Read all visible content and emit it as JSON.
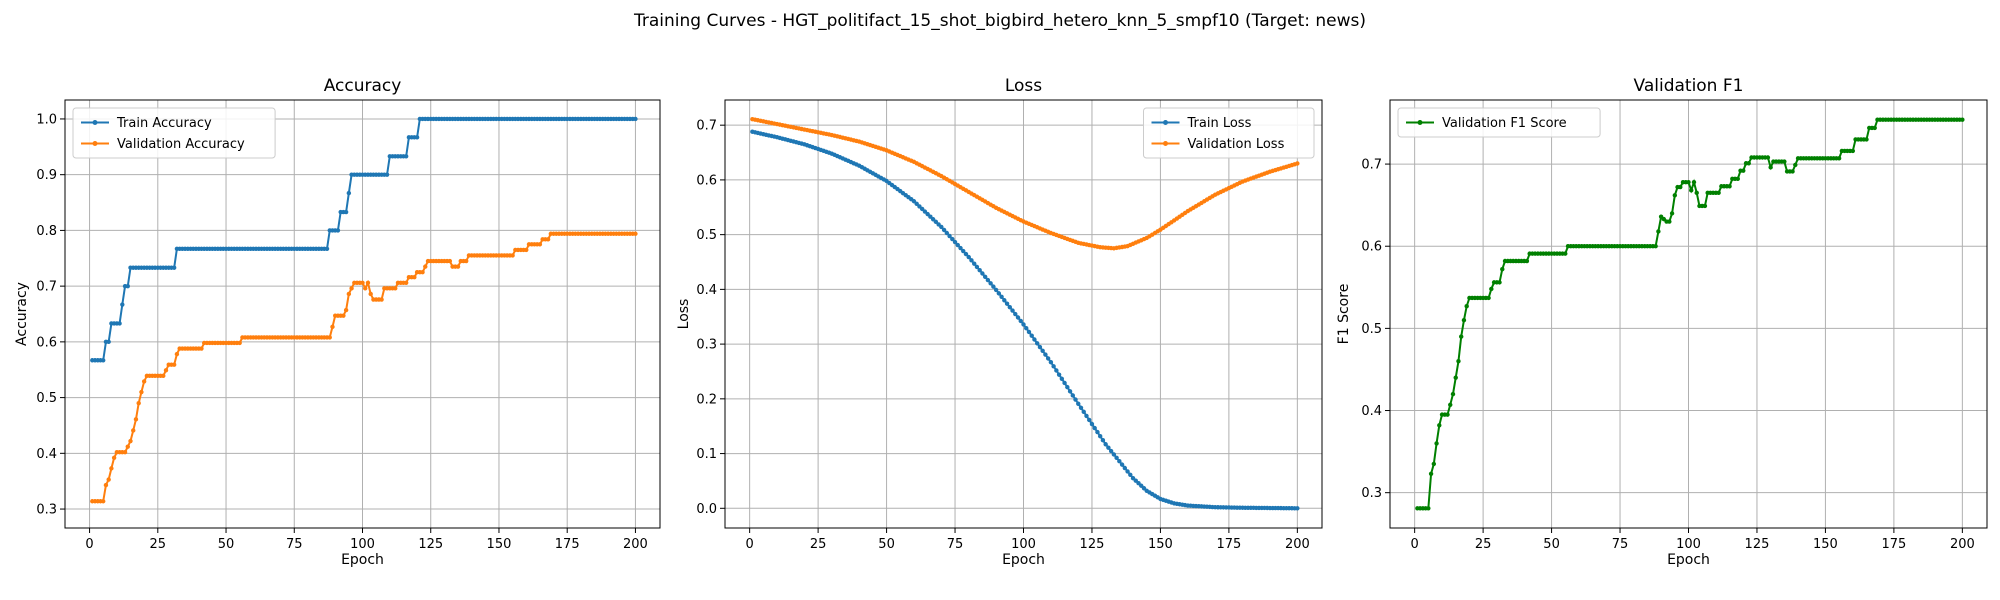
{
  "figure": {
    "suptitle": "Training Curves - HGT_politifact_15_shot_bigbird_hetero_knn_5_smpf10 (Target: news)"
  },
  "colors": {
    "blue": "#1f77b4",
    "orange": "#ff7f0e",
    "green": "#008000"
  },
  "chart_data": [
    {
      "type": "line",
      "title": "Accuracy",
      "xlabel": "Epoch",
      "ylabel": "Accuracy",
      "xlim": [
        -9,
        209
      ],
      "ylim": [
        0.266,
        1.034
      ],
      "xticks": [
        0,
        25,
        50,
        75,
        100,
        125,
        150,
        175,
        200
      ],
      "yticks": [
        0.3,
        0.4,
        0.5,
        0.6,
        0.7,
        0.8,
        0.9,
        1.0
      ],
      "ytick_labels": [
        "0.3",
        "0.4",
        "0.5",
        "0.6",
        "0.7",
        "0.8",
        "0.9",
        "1.0"
      ],
      "grid": true,
      "legend": "upper-left",
      "series": [
        {
          "name": "Train Accuracy",
          "color": "#1f77b4",
          "points": [
            [
              1,
              0.567
            ],
            [
              5,
              0.567
            ],
            [
              6,
              0.6
            ],
            [
              7,
              0.6
            ],
            [
              8,
              0.633
            ],
            [
              11,
              0.633
            ],
            [
              12,
              0.667
            ],
            [
              13,
              0.7
            ],
            [
              14,
              0.7
            ],
            [
              15,
              0.733
            ],
            [
              31,
              0.733
            ],
            [
              32,
              0.767
            ],
            [
              87,
              0.767
            ],
            [
              88,
              0.8
            ],
            [
              91,
              0.8
            ],
            [
              92,
              0.833
            ],
            [
              94,
              0.833
            ],
            [
              95,
              0.867
            ],
            [
              96,
              0.9
            ],
            [
              109,
              0.9
            ],
            [
              110,
              0.933
            ],
            [
              116,
              0.933
            ],
            [
              117,
              0.967
            ],
            [
              120,
              0.967
            ],
            [
              121,
              1.0
            ],
            [
              200,
              1.0
            ]
          ]
        },
        {
          "name": "Validation Accuracy",
          "color": "#ff7f0e",
          "points": [
            [
              1,
              0.314
            ],
            [
              5,
              0.314
            ],
            [
              6,
              0.343
            ],
            [
              7,
              0.353
            ],
            [
              8,
              0.373
            ],
            [
              9,
              0.392
            ],
            [
              10,
              0.402
            ],
            [
              13,
              0.402
            ],
            [
              14,
              0.412
            ],
            [
              15,
              0.422
            ],
            [
              16,
              0.441
            ],
            [
              17,
              0.461
            ],
            [
              18,
              0.49
            ],
            [
              19,
              0.51
            ],
            [
              20,
              0.529
            ],
            [
              21,
              0.539
            ],
            [
              27,
              0.539
            ],
            [
              28,
              0.549
            ],
            [
              29,
              0.559
            ],
            [
              31,
              0.559
            ],
            [
              32,
              0.578
            ],
            [
              33,
              0.588
            ],
            [
              41,
              0.588
            ],
            [
              42,
              0.598
            ],
            [
              55,
              0.598
            ],
            [
              56,
              0.608
            ],
            [
              88,
              0.608
            ],
            [
              89,
              0.627
            ],
            [
              90,
              0.647
            ],
            [
              93,
              0.647
            ],
            [
              94,
              0.657
            ],
            [
              95,
              0.686
            ],
            [
              96,
              0.696
            ],
            [
              97,
              0.706
            ],
            [
              100,
              0.706
            ],
            [
              101,
              0.696
            ],
            [
              102,
              0.706
            ],
            [
              103,
              0.686
            ],
            [
              104,
              0.676
            ],
            [
              107,
              0.676
            ],
            [
              108,
              0.696
            ],
            [
              112,
              0.696
            ],
            [
              113,
              0.706
            ],
            [
              116,
              0.706
            ],
            [
              117,
              0.716
            ],
            [
              119,
              0.716
            ],
            [
              120,
              0.725
            ],
            [
              122,
              0.725
            ],
            [
              123,
              0.735
            ],
            [
              124,
              0.745
            ],
            [
              132,
              0.745
            ],
            [
              133,
              0.735
            ],
            [
              135,
              0.735
            ],
            [
              136,
              0.745
            ],
            [
              138,
              0.745
            ],
            [
              139,
              0.755
            ],
            [
              155,
              0.755
            ],
            [
              156,
              0.765
            ],
            [
              160,
              0.765
            ],
            [
              161,
              0.775
            ],
            [
              165,
              0.775
            ],
            [
              166,
              0.784
            ],
            [
              168,
              0.784
            ],
            [
              169,
              0.794
            ],
            [
              200,
              0.794
            ]
          ]
        }
      ]
    },
    {
      "type": "line",
      "title": "Loss",
      "xlabel": "Epoch",
      "ylabel": "Loss",
      "xlim": [
        -9,
        209
      ],
      "ylim": [
        -0.036,
        0.746
      ],
      "xticks": [
        0,
        25,
        50,
        75,
        100,
        125,
        150,
        175,
        200
      ],
      "yticks": [
        0.0,
        0.1,
        0.2,
        0.3,
        0.4,
        0.5,
        0.6,
        0.7
      ],
      "ytick_labels": [
        "0.0",
        "0.1",
        "0.2",
        "0.3",
        "0.4",
        "0.5",
        "0.6",
        "0.7"
      ],
      "grid": true,
      "legend": "upper-right",
      "series": [
        {
          "name": "Train Loss",
          "color": "#1f77b4",
          "points": [
            [
              1,
              0.688
            ],
            [
              10,
              0.678
            ],
            [
              20,
              0.665
            ],
            [
              30,
              0.648
            ],
            [
              40,
              0.626
            ],
            [
              50,
              0.598
            ],
            [
              60,
              0.561
            ],
            [
              70,
              0.514
            ],
            [
              80,
              0.459
            ],
            [
              90,
              0.399
            ],
            [
              100,
              0.336
            ],
            [
              110,
              0.267
            ],
            [
              120,
              0.191
            ],
            [
              130,
              0.117
            ],
            [
              140,
              0.055
            ],
            [
              145,
              0.032
            ],
            [
              150,
              0.017
            ],
            [
              155,
              0.009
            ],
            [
              160,
              0.005
            ],
            [
              170,
              0.002
            ],
            [
              180,
              0.001
            ],
            [
              200,
              0.0
            ]
          ]
        },
        {
          "name": "Validation Loss",
          "color": "#ff7f0e",
          "points": [
            [
              1,
              0.711
            ],
            [
              10,
              0.702
            ],
            [
              20,
              0.692
            ],
            [
              30,
              0.682
            ],
            [
              40,
              0.67
            ],
            [
              50,
              0.654
            ],
            [
              60,
              0.633
            ],
            [
              70,
              0.607
            ],
            [
              80,
              0.578
            ],
            [
              90,
              0.549
            ],
            [
              100,
              0.524
            ],
            [
              110,
              0.503
            ],
            [
              120,
              0.485
            ],
            [
              128,
              0.477
            ],
            [
              133,
              0.475
            ],
            [
              138,
              0.479
            ],
            [
              145,
              0.494
            ],
            [
              150,
              0.509
            ],
            [
              160,
              0.543
            ],
            [
              170,
              0.573
            ],
            [
              180,
              0.597
            ],
            [
              190,
              0.615
            ],
            [
              200,
              0.63
            ]
          ]
        }
      ]
    },
    {
      "type": "line",
      "title": "Validation F1",
      "xlabel": "Epoch",
      "ylabel": "F1 Score",
      "xlim": [
        -9,
        209
      ],
      "ylim": [
        0.257,
        0.778
      ],
      "xticks": [
        0,
        25,
        50,
        75,
        100,
        125,
        150,
        175,
        200
      ],
      "yticks": [
        0.3,
        0.4,
        0.5,
        0.6,
        0.7
      ],
      "ytick_labels": [
        "0.3",
        "0.4",
        "0.5",
        "0.6",
        "0.7"
      ],
      "grid": true,
      "legend": "upper-left",
      "series": [
        {
          "name": "Validation F1 Score",
          "color": "#008000",
          "points": [
            [
              1,
              0.281
            ],
            [
              5,
              0.281
            ],
            [
              6,
              0.323
            ],
            [
              7,
              0.335
            ],
            [
              8,
              0.36
            ],
            [
              9,
              0.382
            ],
            [
              10,
              0.395
            ],
            [
              12,
              0.395
            ],
            [
              13,
              0.407
            ],
            [
              14,
              0.42
            ],
            [
              15,
              0.44
            ],
            [
              16,
              0.46
            ],
            [
              17,
              0.49
            ],
            [
              18,
              0.51
            ],
            [
              19,
              0.527
            ],
            [
              20,
              0.537
            ],
            [
              27,
              0.537
            ],
            [
              28,
              0.548
            ],
            [
              29,
              0.556
            ],
            [
              31,
              0.556
            ],
            [
              32,
              0.572
            ],
            [
              33,
              0.582
            ],
            [
              41,
              0.582
            ],
            [
              42,
              0.591
            ],
            [
              55,
              0.591
            ],
            [
              56,
              0.6
            ],
            [
              88,
              0.6
            ],
            [
              89,
              0.618
            ],
            [
              90,
              0.636
            ],
            [
              92,
              0.63
            ],
            [
              93,
              0.63
            ],
            [
              94,
              0.64
            ],
            [
              95,
              0.662
            ],
            [
              96,
              0.672
            ],
            [
              97,
              0.672
            ],
            [
              98,
              0.678
            ],
            [
              100,
              0.678
            ],
            [
              101,
              0.668
            ],
            [
              102,
              0.678
            ],
            [
              103,
              0.665
            ],
            [
              104,
              0.649
            ],
            [
              106,
              0.649
            ],
            [
              107,
              0.665
            ],
            [
              111,
              0.665
            ],
            [
              112,
              0.673
            ],
            [
              115,
              0.673
            ],
            [
              116,
              0.682
            ],
            [
              118,
              0.682
            ],
            [
              119,
              0.692
            ],
            [
              120,
              0.692
            ],
            [
              121,
              0.701
            ],
            [
              122,
              0.701
            ],
            [
              123,
              0.708
            ],
            [
              129,
              0.708
            ],
            [
              130,
              0.696
            ],
            [
              131,
              0.703
            ],
            [
              135,
              0.703
            ],
            [
              136,
              0.691
            ],
            [
              138,
              0.691
            ],
            [
              139,
              0.699
            ],
            [
              140,
              0.707
            ],
            [
              155,
              0.707
            ],
            [
              156,
              0.716
            ],
            [
              160,
              0.716
            ],
            [
              161,
              0.73
            ],
            [
              165,
              0.73
            ],
            [
              166,
              0.744
            ],
            [
              168,
              0.744
            ],
            [
              169,
              0.754
            ],
            [
              200,
              0.754
            ]
          ]
        }
      ]
    }
  ]
}
